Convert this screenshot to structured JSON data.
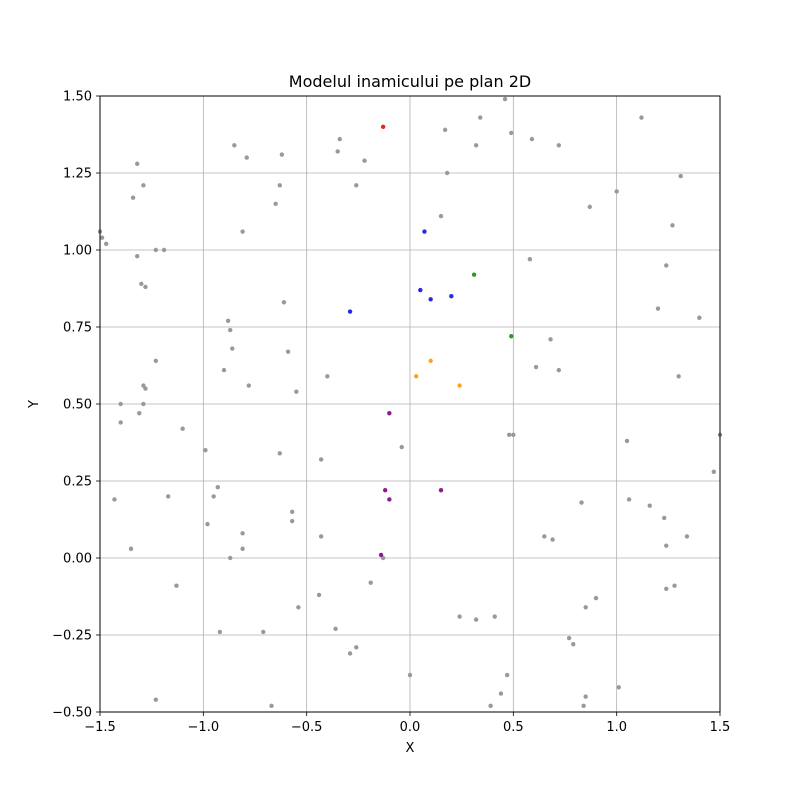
{
  "chart_data": {
    "type": "scatter",
    "title": "Modelul inamicului pe plan 2D",
    "xlabel": "X",
    "ylabel": "Y",
    "xlim": [
      -1.5,
      1.5
    ],
    "ylim": [
      -0.5,
      1.5
    ],
    "grid": true,
    "xticks": [
      "−1.5",
      "−1.0",
      "−0.5",
      "0.0",
      "0.5",
      "1.0",
      "1.5"
    ],
    "xtick_values": [
      -1.5,
      -1.0,
      -0.5,
      0.0,
      0.5,
      1.0,
      1.5
    ],
    "yticks": [
      "−0.50",
      "−0.25",
      "0.00",
      "0.25",
      "0.50",
      "0.75",
      "1.00",
      "1.25",
      "1.50"
    ],
    "ytick_values": [
      -0.5,
      -0.25,
      0.0,
      0.25,
      0.5,
      0.75,
      1.0,
      1.25,
      1.5
    ],
    "series": [
      {
        "color": "#999999",
        "points": [
          [
            -1.5,
            1.06
          ],
          [
            -1.49,
            1.04
          ],
          [
            -1.47,
            1.02
          ],
          [
            -1.32,
            1.28
          ],
          [
            -1.34,
            1.17
          ],
          [
            -1.29,
            1.21
          ],
          [
            -1.32,
            0.98
          ],
          [
            -1.23,
            1.0
          ],
          [
            -1.19,
            1.0
          ],
          [
            -1.3,
            0.89
          ],
          [
            -1.28,
            0.88
          ],
          [
            -1.23,
            0.64
          ],
          [
            -1.29,
            0.56
          ],
          [
            -1.28,
            0.55
          ],
          [
            -1.4,
            0.5
          ],
          [
            -1.31,
            0.47
          ],
          [
            -1.29,
            0.5
          ],
          [
            -1.4,
            0.44
          ],
          [
            -1.1,
            0.42
          ],
          [
            -1.43,
            0.19
          ],
          [
            -1.17,
            0.2
          ],
          [
            -1.35,
            0.03
          ],
          [
            -1.13,
            -0.09
          ],
          [
            -1.23,
            -0.46
          ],
          [
            -0.85,
            1.34
          ],
          [
            -0.79,
            1.3
          ],
          [
            -0.62,
            1.31
          ],
          [
            -0.63,
            1.21
          ],
          [
            -0.65,
            1.15
          ],
          [
            -0.81,
            1.06
          ],
          [
            -0.61,
            0.83
          ],
          [
            -0.88,
            0.77
          ],
          [
            -0.87,
            0.74
          ],
          [
            -0.86,
            0.68
          ],
          [
            -0.9,
            0.61
          ],
          [
            -0.78,
            0.56
          ],
          [
            -0.59,
            0.67
          ],
          [
            -0.55,
            0.54
          ],
          [
            -0.99,
            0.35
          ],
          [
            -0.93,
            0.23
          ],
          [
            -0.95,
            0.2
          ],
          [
            -0.63,
            0.34
          ],
          [
            -0.57,
            0.15
          ],
          [
            -0.57,
            0.12
          ],
          [
            -0.98,
            0.11
          ],
          [
            -0.81,
            0.08
          ],
          [
            -0.81,
            0.03
          ],
          [
            -0.87,
            -0.0
          ],
          [
            -0.54,
            -0.16
          ],
          [
            -0.92,
            -0.24
          ],
          [
            -0.71,
            -0.24
          ],
          [
            -0.67,
            -0.48
          ],
          [
            -0.34,
            1.36
          ],
          [
            -0.35,
            1.32
          ],
          [
            -0.22,
            1.29
          ],
          [
            -0.26,
            1.21
          ],
          [
            -0.4,
            0.59
          ],
          [
            -0.43,
            0.32
          ],
          [
            -0.04,
            0.36
          ],
          [
            -0.43,
            0.07
          ],
          [
            -0.13,
            -0.0
          ],
          [
            -0.19,
            -0.08
          ],
          [
            -0.44,
            -0.12
          ],
          [
            -0.36,
            -0.23
          ],
          [
            -0.29,
            -0.31
          ],
          [
            -0.26,
            -0.29
          ],
          [
            0.0,
            -0.38
          ],
          [
            0.17,
            1.39
          ],
          [
            0.34,
            1.43
          ],
          [
            0.46,
            1.49
          ],
          [
            0.49,
            1.38
          ],
          [
            0.32,
            1.34
          ],
          [
            0.18,
            1.25
          ],
          [
            0.15,
            1.11
          ],
          [
            0.59,
            1.36
          ],
          [
            0.72,
            1.34
          ],
          [
            0.58,
            0.97
          ],
          [
            0.61,
            0.62
          ],
          [
            0.68,
            0.71
          ],
          [
            0.72,
            0.61
          ],
          [
            0.48,
            0.4
          ],
          [
            0.5,
            0.4
          ],
          [
            0.65,
            0.07
          ],
          [
            0.69,
            0.06
          ],
          [
            0.24,
            -0.19
          ],
          [
            0.32,
            -0.2
          ],
          [
            0.41,
            -0.19
          ],
          [
            0.47,
            -0.38
          ],
          [
            0.44,
            -0.44
          ],
          [
            0.39,
            -0.48
          ],
          [
            1.12,
            1.43
          ],
          [
            1.31,
            1.24
          ],
          [
            1.0,
            1.19
          ],
          [
            0.87,
            1.14
          ],
          [
            1.27,
            1.08
          ],
          [
            1.24,
            0.95
          ],
          [
            1.2,
            0.81
          ],
          [
            1.4,
            0.78
          ],
          [
            1.3,
            0.59
          ],
          [
            1.05,
            0.38
          ],
          [
            1.5,
            0.4
          ],
          [
            1.47,
            0.28
          ],
          [
            0.83,
            0.18
          ],
          [
            1.06,
            0.19
          ],
          [
            1.16,
            0.17
          ],
          [
            1.23,
            0.13
          ],
          [
            1.24,
            0.04
          ],
          [
            1.34,
            0.07
          ],
          [
            1.24,
            -0.1
          ],
          [
            1.28,
            -0.09
          ],
          [
            0.9,
            -0.13
          ],
          [
            0.85,
            -0.16
          ],
          [
            0.77,
            -0.26
          ],
          [
            0.79,
            -0.28
          ],
          [
            0.85,
            -0.45
          ],
          [
            0.84,
            -0.48
          ],
          [
            1.01,
            -0.42
          ]
        ]
      },
      {
        "color": "#e8251e",
        "points": [
          [
            -0.13,
            1.4
          ]
        ]
      },
      {
        "color": "#2828e8",
        "points": [
          [
            0.07,
            1.06
          ],
          [
            0.05,
            0.87
          ],
          [
            0.1,
            0.84
          ],
          [
            0.2,
            0.85
          ],
          [
            -0.29,
            0.8
          ]
        ]
      },
      {
        "color": "#2b9a2b",
        "points": [
          [
            0.31,
            0.92
          ],
          [
            0.49,
            0.72
          ]
        ]
      },
      {
        "color": "#f5a623",
        "points": [
          [
            0.1,
            0.64
          ],
          [
            0.03,
            0.59
          ],
          [
            0.24,
            0.56
          ]
        ]
      },
      {
        "color": "#8e1a8e",
        "points": [
          [
            -0.1,
            0.47
          ],
          [
            -0.12,
            0.22
          ],
          [
            -0.1,
            0.19
          ],
          [
            0.15,
            0.22
          ],
          [
            -0.14,
            0.01
          ]
        ]
      }
    ]
  }
}
